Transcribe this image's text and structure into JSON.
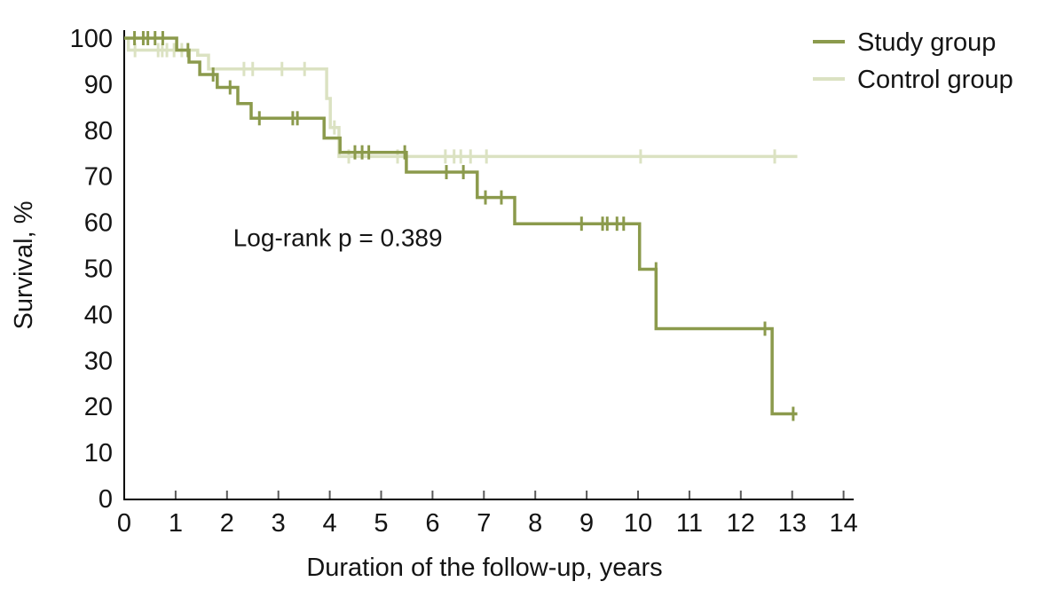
{
  "figure": {
    "background": "#ffffff",
    "x_axis": {
      "label": "Duration of the follow-up, years",
      "min": 0,
      "max": 14,
      "tick_step": 1,
      "ticks": [
        0,
        1,
        2,
        3,
        4,
        5,
        6,
        7,
        8,
        9,
        10,
        11,
        12,
        13,
        14
      ]
    },
    "y_axis": {
      "label": "Survival, %",
      "min": 0,
      "max": 100,
      "tick_step": 10,
      "ticks": [
        0,
        10,
        20,
        30,
        40,
        50,
        60,
        70,
        80,
        90,
        100
      ]
    }
  },
  "legend": {
    "position": "top-right",
    "items": [
      {
        "label": "Study group",
        "color": "#8B9A4C"
      },
      {
        "label": "Control group",
        "color": "#DBE2C2"
      }
    ]
  },
  "chart_data": {
    "type": "line",
    "subtype": "kaplan-meier-step-curves",
    "title": "",
    "xlabel": "Duration of the follow-up, years",
    "ylabel": "Survival, %",
    "xlim": [
      0,
      14
    ],
    "ylim": [
      0,
      100
    ],
    "grid": false,
    "legend_position": "top-right",
    "annotations": [
      {
        "text": "Log-rank p = 0.389",
        "x": 2.12,
        "y": 54.8
      }
    ],
    "series": [
      {
        "name": "Study group",
        "color": "#8B9A4C",
        "start": [
          0,
          100
        ],
        "steps": [
          [
            1.02,
            97.4
          ],
          [
            1.26,
            94.8
          ],
          [
            1.47,
            92.1
          ],
          [
            1.81,
            89.3
          ],
          [
            2.21,
            85.8
          ],
          [
            2.47,
            82.6
          ],
          [
            3.89,
            78.3
          ],
          [
            4.2,
            75.2
          ],
          [
            5.49,
            70.9
          ],
          [
            6.87,
            65.4
          ],
          [
            7.6,
            59.7
          ],
          [
            10.03,
            49.8
          ],
          [
            10.35,
            36.9
          ],
          [
            12.61,
            18.4
          ]
        ],
        "end_time": 13.1,
        "censors": [
          [
            0.2,
            100
          ],
          [
            0.37,
            100
          ],
          [
            0.46,
            100
          ],
          [
            0.6,
            100
          ],
          [
            0.75,
            100
          ],
          [
            1.24,
            97.4
          ],
          [
            1.73,
            92.1
          ],
          [
            2.06,
            89.3
          ],
          [
            2.63,
            82.6
          ],
          [
            3.28,
            82.6
          ],
          [
            3.37,
            82.6
          ],
          [
            4.49,
            75.2
          ],
          [
            4.63,
            75.2
          ],
          [
            4.76,
            75.2
          ],
          [
            5.46,
            75.2
          ],
          [
            6.27,
            70.9
          ],
          [
            6.6,
            70.9
          ],
          [
            7.03,
            65.4
          ],
          [
            7.34,
            65.4
          ],
          [
            8.9,
            59.7
          ],
          [
            9.31,
            59.7
          ],
          [
            9.4,
            59.7
          ],
          [
            9.59,
            59.7
          ],
          [
            9.72,
            59.7
          ],
          [
            10.35,
            49.8
          ],
          [
            12.47,
            36.9
          ],
          [
            13.02,
            18.4
          ]
        ]
      },
      {
        "name": "Control group",
        "color": "#DBE2C2",
        "start": [
          0,
          100
        ],
        "steps": [
          [
            0.08,
            97.4
          ],
          [
            1.43,
            96.3
          ],
          [
            1.64,
            93.3
          ],
          [
            3.94,
            86.9
          ],
          [
            4.01,
            80.6
          ],
          [
            4.18,
            74.3
          ]
        ],
        "end_time": 13.1,
        "censors": [
          [
            0.21,
            97.4
          ],
          [
            0.66,
            97.4
          ],
          [
            0.74,
            97.4
          ],
          [
            0.83,
            97.4
          ],
          [
            0.97,
            97.4
          ],
          [
            1.12,
            97.4
          ],
          [
            2.33,
            93.3
          ],
          [
            2.5,
            93.3
          ],
          [
            3.07,
            93.3
          ],
          [
            3.51,
            93.3
          ],
          [
            4.09,
            80.6
          ],
          [
            4.37,
            74.3
          ],
          [
            5.32,
            74.3
          ],
          [
            6.25,
            74.3
          ],
          [
            6.42,
            74.3
          ],
          [
            6.55,
            74.3
          ],
          [
            6.74,
            74.3
          ],
          [
            7.05,
            74.3
          ],
          [
            10.05,
            74.3
          ],
          [
            12.66,
            74.3
          ]
        ]
      }
    ]
  }
}
